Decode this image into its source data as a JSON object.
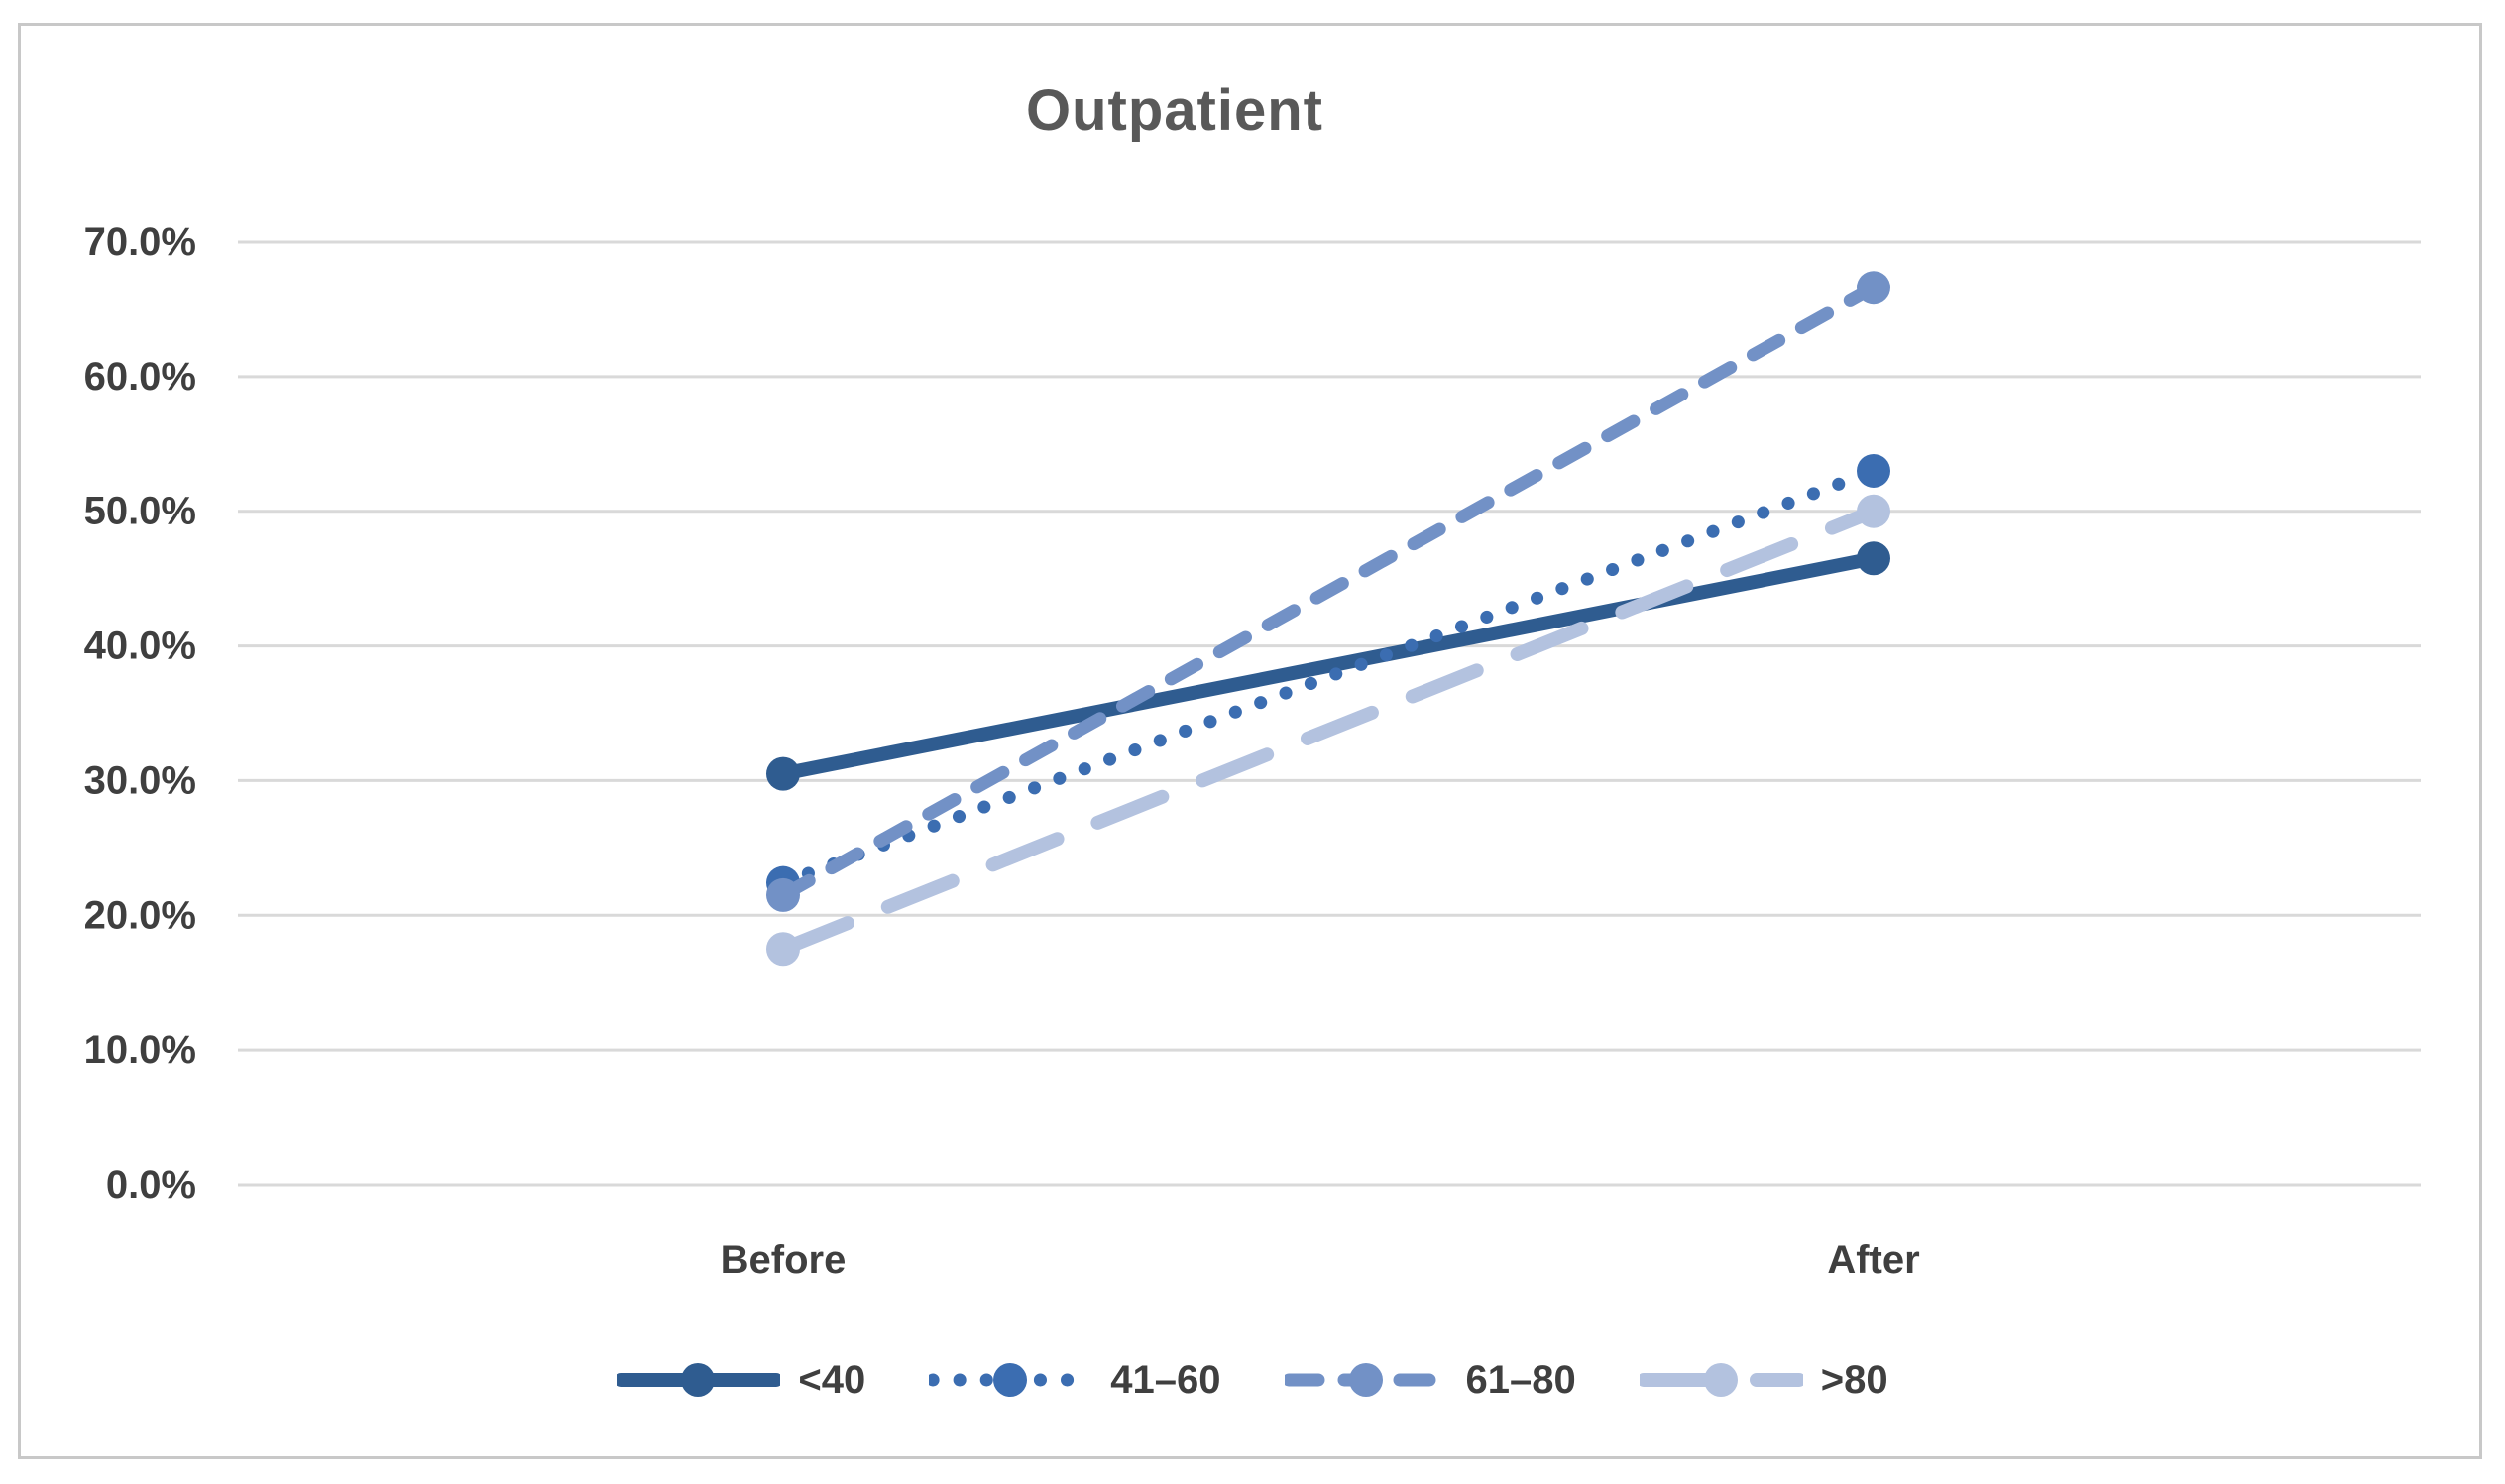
{
  "chart_data": {
    "type": "line",
    "title": "Outpatient",
    "categories": [
      "Before",
      "After"
    ],
    "series": [
      {
        "name": "<40",
        "values": [
          30.5,
          46.5
        ],
        "color": "#2F5C90",
        "style": "solid"
      },
      {
        "name": "41–60",
        "values": [
          22.4,
          53.0
        ],
        "color": "#3B6DB1",
        "style": "dotted"
      },
      {
        "name": "61–80",
        "values": [
          21.5,
          66.6
        ],
        "color": "#7291C6",
        "style": "dashed"
      },
      {
        "name": ">80",
        "values": [
          17.5,
          50.0
        ],
        "color": "#B3C2DF",
        "style": "long-dash"
      }
    ],
    "xlabel": "",
    "ylabel": "",
    "ylim": [
      0,
      70
    ],
    "ytick_values": [
      0,
      10,
      20,
      30,
      40,
      50,
      60,
      70
    ],
    "yticks": [
      "0.0%",
      "10.0%",
      "20.0%",
      "30.0%",
      "40.0%",
      "50.0%",
      "60.0%",
      "70.0%"
    ],
    "grid": "horizontal",
    "legend_position": "bottom",
    "marker": "circle",
    "value_format": "percent"
  },
  "colors": {
    "gridline": "#D9D9D9",
    "axis_text": "#3F3F3F",
    "title_text": "#595959",
    "border": "#C8C8C8",
    "background": "#FFFFFF"
  }
}
